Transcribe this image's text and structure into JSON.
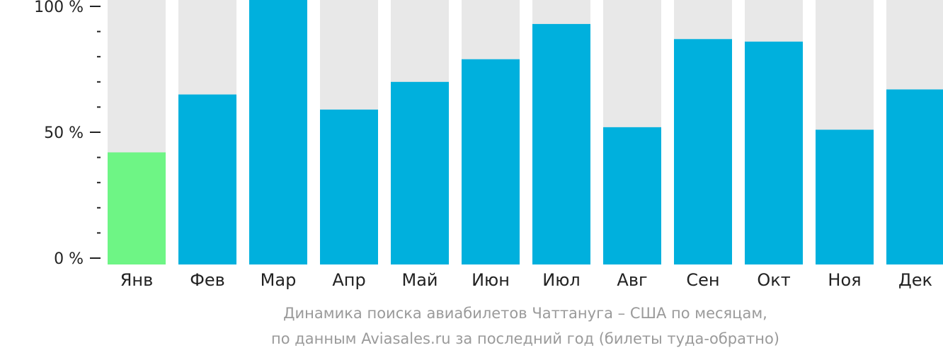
{
  "chart_data": {
    "type": "bar",
    "categories": [
      "Янв",
      "Фев",
      "Мар",
      "Апр",
      "Май",
      "Июн",
      "Июл",
      "Авг",
      "Сен",
      "Окт",
      "Ноя",
      "Дек"
    ],
    "values": [
      42,
      65,
      100,
      59,
      70,
      79,
      93,
      52,
      87,
      86,
      51,
      67
    ],
    "ylim": [
      0,
      100
    ],
    "y_ticks": [
      {
        "value": 0,
        "label": "0 %"
      },
      {
        "value": 50,
        "label": "50 %"
      },
      {
        "value": 100,
        "label": "100 %"
      }
    ],
    "y_minor_step": 10,
    "highlight_index": 0,
    "caption_lines": [
      "Динамика поиска авиабилетов Чаттануга – США по месяцам,",
      "по данным Aviasales.ru за последний год (билеты туда-обратно)"
    ],
    "colors": {
      "bar": "#00b0dd",
      "highlight": "#6ef585",
      "background_bar": "#e8e8e8",
      "axis": "#222222",
      "caption": "#9a9a9a"
    }
  }
}
